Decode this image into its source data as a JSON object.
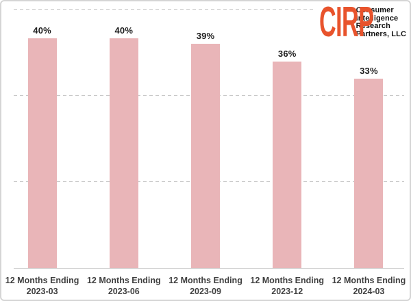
{
  "chart_data": {
    "type": "bar",
    "title": "",
    "xlabel": "",
    "ylabel": "",
    "categories": [
      "12 Months Ending\n2023-03",
      "12 Months Ending\n2023-06",
      "12 Months Ending\n2023-09",
      "12 Months Ending\n2023-12",
      "12 Months Ending\n2024-03"
    ],
    "values": [
      40,
      40,
      39,
      36,
      33
    ],
    "value_labels": [
      "40%",
      "40%",
      "39%",
      "36%",
      "33%"
    ],
    "ylim": [
      0,
      45
    ],
    "gridlines": [
      15,
      30,
      45
    ],
    "grid_style": "dashed horizontal, no y-axis tick labels",
    "legend": null,
    "bar_color": "#e9b5b8"
  },
  "logo": {
    "abbr": "CIRP",
    "lines": [
      "Consumer",
      "Intelligence",
      "Research",
      "Partners, LLC"
    ],
    "color": "#e8532c"
  },
  "colors": {
    "background": "#ffffff",
    "border": "#d5d5d5",
    "gridline": "#c7c7c7",
    "baseline": "#d4d4d4",
    "value_label": "#1f1f1f",
    "axis_label": "#3f3f3f"
  }
}
